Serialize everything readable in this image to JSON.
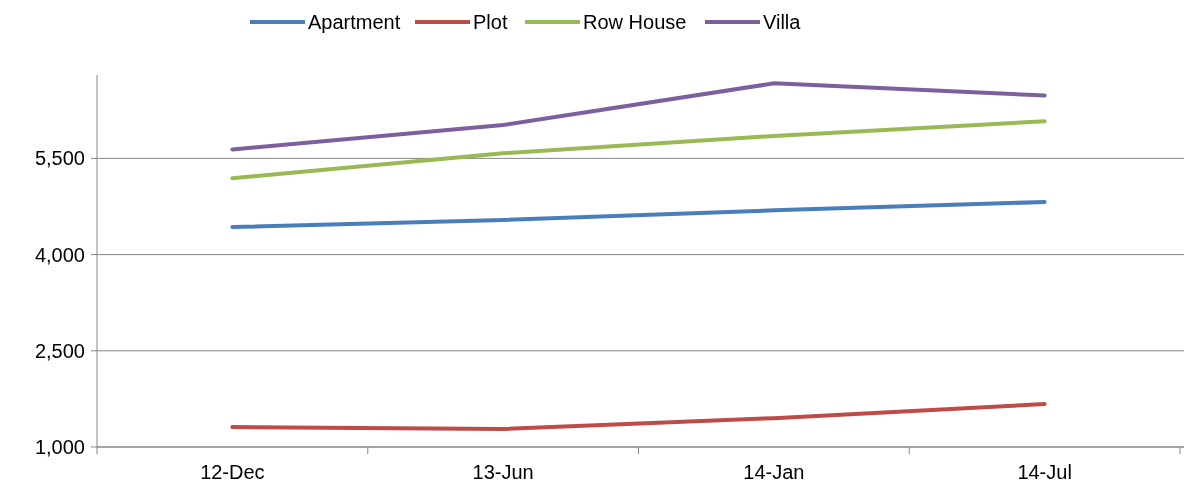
{
  "chart_data": {
    "type": "line",
    "categories": [
      "12-Dec",
      "13-Jun",
      "14-Jan",
      "14-Jul"
    ],
    "series": [
      {
        "name": "Apartment",
        "color": "#4a7ebb",
        "values": [
          4430,
          4540,
          4690,
          4820
        ]
      },
      {
        "name": "Plot",
        "color": "#be4b48",
        "values": [
          1310,
          1280,
          1450,
          1670
        ]
      },
      {
        "name": "Row House",
        "color": "#98b954",
        "values": [
          5190,
          5580,
          5850,
          6080
        ]
      },
      {
        "name": "Villa",
        "color": "#7d5fa0",
        "values": [
          5640,
          6020,
          6670,
          6480
        ]
      }
    ],
    "ylim": [
      1000,
      6800
    ],
    "yticks": [
      {
        "value": 1000,
        "label": "1,000"
      },
      {
        "value": 2500,
        "label": "2,500"
      },
      {
        "value": 4000,
        "label": "4,000"
      },
      {
        "value": 5500,
        "label": "5,500"
      }
    ],
    "grid": "y",
    "legend": "top",
    "marker": "none",
    "line_style": "solid"
  }
}
